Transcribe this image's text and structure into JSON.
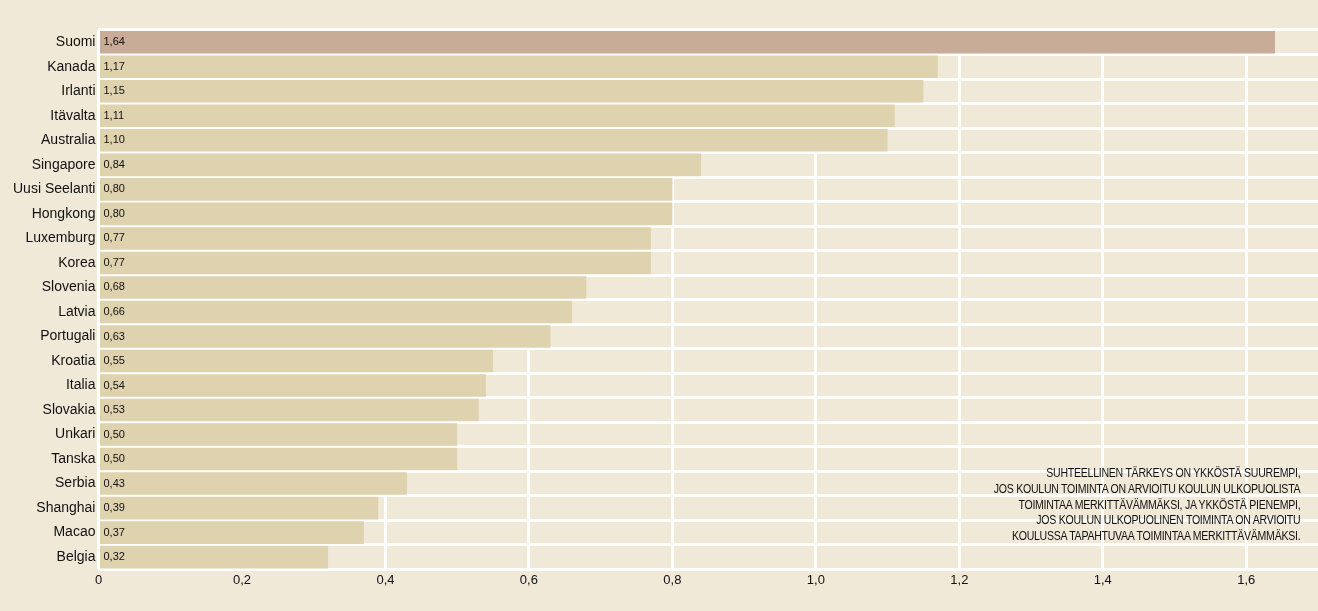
{
  "chart_data": {
    "type": "bar",
    "orientation": "horizontal",
    "categories": [
      "Suomi",
      "Kanada",
      "Irlanti",
      "Itävalta",
      "Australia",
      "Singapore",
      "Uusi Seelanti",
      "Hongkong",
      "Luxemburg",
      "Korea",
      "Slovenia",
      "Latvia",
      "Portugali",
      "Kroatia",
      "Italia",
      "Slovakia",
      "Unkari",
      "Tanska",
      "Serbia",
      "Shanghai",
      "Macao",
      "Belgia"
    ],
    "values": [
      1.64,
      1.17,
      1.15,
      1.11,
      1.1,
      0.84,
      0.8,
      0.8,
      0.77,
      0.77,
      0.68,
      0.66,
      0.63,
      0.55,
      0.54,
      0.53,
      0.5,
      0.5,
      0.43,
      0.39,
      0.37,
      0.32
    ],
    "value_labels": [
      "1,64",
      "1,17",
      "1,15",
      "1,11",
      "1,10",
      "0,84",
      "0,80",
      "0,80",
      "0,77",
      "0,77",
      "0,68",
      "0,66",
      "0,63",
      "0,55",
      "0,54",
      "0,53",
      "0,50",
      "0,50",
      "0,43",
      "0,39",
      "0,37",
      "0,32"
    ],
    "colors": [
      "#c9ac98",
      "#dfd2ae",
      "#dfd2ae",
      "#dfd2ae",
      "#dfd2ae",
      "#dfd2ae",
      "#dfd2ae",
      "#dfd2ae",
      "#dfd2ae",
      "#dfd2ae",
      "#dfd2ae",
      "#dfd2ae",
      "#dfd2ae",
      "#dfd2ae",
      "#dfd2ae",
      "#dfd2ae",
      "#dfd2ae",
      "#dfd2ae",
      "#dfd2ae",
      "#dfd2ae",
      "#dfd2ae",
      "#dfd2ae"
    ],
    "xlim": [
      0,
      1.7
    ],
    "xticks": [
      0,
      {
        "value": 0.2,
        "label": "0,2"
      },
      {
        "value": 0.4,
        "label": "0,4"
      },
      {
        "value": 0.6,
        "label": "0,6"
      },
      {
        "value": 0.8,
        "label": "0,8"
      },
      {
        "value": 1.0,
        "label": "1,0"
      },
      {
        "value": 1.2,
        "label": "1,2"
      },
      {
        "value": 1.4,
        "label": "1,4"
      },
      {
        "value": 1.6,
        "label": "1,6"
      }
    ],
    "grid": true,
    "legend": false,
    "annotations": [
      "SUHTEELLINEN TÄRKEYS ON YKKÖSTÄ SUUREMPI,\nJOS KOULUN TOIMINTA ON ARVIOITU KOULUN ULKOPUOLISTA\nTOIMINTAA MERKITTÄVÄMMÄKSI, JA YKKÖSTÄ PIENEMPI,\nJOS KOULUN ULKOPUOLINEN TOIMINTA ON ARVIOITU\nKOULUSSA TAPAHTUVAA TOIMINTAA MERKITTÄVÄMMÄKSI."
    ]
  }
}
